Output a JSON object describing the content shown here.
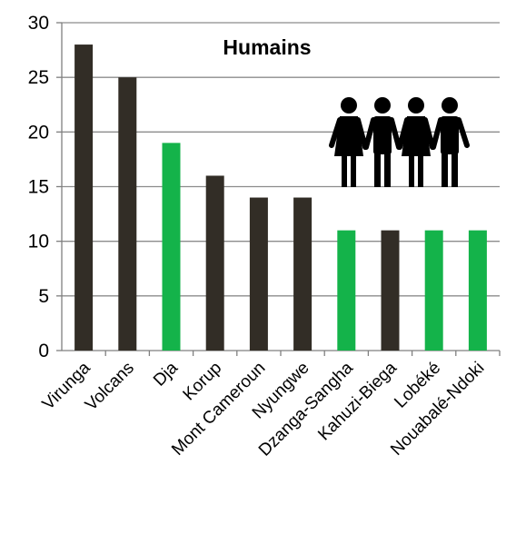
{
  "chart_data": {
    "type": "bar",
    "title": "Humains",
    "categories": [
      "Virunga",
      "Volcans",
      "Dja",
      "Korup",
      "Mont Cameroun",
      "Nyungwe",
      "Dzanga-Sangha",
      "Kahuzi-Biega",
      "Lobéké",
      "Nouabalé-Ndoki"
    ],
    "values": [
      28,
      25,
      19,
      16,
      14,
      14,
      11,
      11,
      11,
      11
    ],
    "highlighted": [
      false,
      false,
      true,
      false,
      false,
      false,
      true,
      false,
      true,
      true
    ],
    "colors": {
      "default": "#322d26",
      "highlight": "#14b34a",
      "grid": "#8c8c8c",
      "axis": "#7f7f7f"
    },
    "ylim": [
      0,
      30
    ],
    "yticks": [
      0,
      5,
      10,
      15,
      20,
      25,
      30
    ],
    "grid": true,
    "legend": "none",
    "xlabel": "",
    "ylabel": "",
    "icon": "people-icon"
  }
}
